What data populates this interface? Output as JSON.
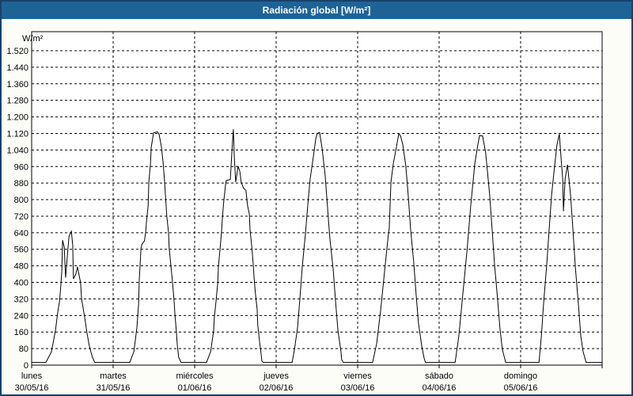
{
  "title": "Radiación global [W/m²]",
  "colors": {
    "titlebar": "#1E6396",
    "panel_border": "#17416B",
    "panel_background": "#FDFDF8",
    "plot_background": "#FFFFFF",
    "grid": "#000000",
    "axis": "#000000",
    "line": "#000000",
    "text": "#000000"
  },
  "chart_data": {
    "type": "line",
    "title": "Radiación global [W/m²]",
    "ylabel": "W/m²",
    "xlabel": "",
    "ylim": [
      0,
      1520
    ],
    "ytick_step": 80,
    "ytick_labels": [
      "0",
      "80",
      "160",
      "240",
      "320",
      "400",
      "480",
      "560",
      "640",
      "720",
      "800",
      "880",
      "960",
      "1.040",
      "1.120",
      "1.200",
      "1.280",
      "1.360",
      "1.440",
      "1.520"
    ],
    "grid": "dashed",
    "legend_position": "none",
    "x_range_hours": [
      0,
      168
    ],
    "day_boundary_hours": [
      24,
      48,
      72,
      96,
      120,
      144
    ],
    "days": [
      {
        "name": "lunes",
        "date": "30/05/16",
        "hour": 0
      },
      {
        "name": "martes",
        "date": "31/05/16",
        "hour": 24
      },
      {
        "name": "miércoles",
        "date": "01/06/16",
        "hour": 48
      },
      {
        "name": "jueves",
        "date": "02/06/16",
        "hour": 72
      },
      {
        "name": "viernes",
        "date": "03/06/16",
        "hour": 96
      },
      {
        "name": "sábado",
        "date": "04/06/16",
        "hour": 120
      },
      {
        "name": "domingo",
        "date": "05/06/16",
        "hour": 144
      }
    ],
    "series": [
      {
        "name": "Radiación global",
        "units": "W/m²",
        "points": [
          [
            0,
            13
          ],
          [
            4.2,
            13
          ],
          [
            5.8,
            64
          ],
          [
            7,
            165
          ],
          [
            7.7,
            256
          ],
          [
            8.2,
            308
          ],
          [
            8.6,
            385
          ],
          [
            8.9,
            462
          ],
          [
            9.1,
            604
          ],
          [
            9.6,
            570
          ],
          [
            10,
            423
          ],
          [
            11,
            622
          ],
          [
            11.7,
            647
          ],
          [
            12.1,
            580
          ],
          [
            12.3,
            417
          ],
          [
            13,
            440
          ],
          [
            13.5,
            475
          ],
          [
            14.4,
            398
          ],
          [
            14.7,
            320
          ],
          [
            15.6,
            231
          ],
          [
            16.3,
            154
          ],
          [
            17,
            90
          ],
          [
            17.9,
            38
          ],
          [
            18.6,
            13
          ],
          [
            28.9,
            13
          ],
          [
            30.1,
            65
          ],
          [
            31,
            181
          ],
          [
            31.5,
            296
          ],
          [
            31.7,
            412
          ],
          [
            32.2,
            565
          ],
          [
            32.5,
            585
          ],
          [
            33.2,
            600
          ],
          [
            33.6,
            645
          ],
          [
            33.8,
            693
          ],
          [
            34.3,
            770
          ],
          [
            34.5,
            885
          ],
          [
            35,
            975
          ],
          [
            35.2,
            1052
          ],
          [
            35.7,
            1103
          ],
          [
            35.9,
            1123
          ],
          [
            37,
            1128
          ],
          [
            37.5,
            1118
          ],
          [
            38.2,
            1058
          ],
          [
            38.7,
            981
          ],
          [
            39.1,
            898
          ],
          [
            39.8,
            719
          ],
          [
            40.3,
            641
          ],
          [
            40.5,
            565
          ],
          [
            41,
            481
          ],
          [
            41.5,
            398
          ],
          [
            41.9,
            321
          ],
          [
            42.2,
            244
          ],
          [
            42.6,
            167
          ],
          [
            42.9,
            96
          ],
          [
            43.3,
            38
          ],
          [
            44,
            13
          ],
          [
            51.5,
            13
          ],
          [
            52.7,
            65
          ],
          [
            53.6,
            167
          ],
          [
            53.8,
            231
          ],
          [
            54.3,
            308
          ],
          [
            54.8,
            398
          ],
          [
            55,
            475
          ],
          [
            55.5,
            565
          ],
          [
            55.9,
            641
          ],
          [
            56.2,
            719
          ],
          [
            56.6,
            796
          ],
          [
            57.1,
            873
          ],
          [
            57.3,
            892
          ],
          [
            58.5,
            898
          ],
          [
            59,
            1040
          ],
          [
            59.4,
            1140
          ],
          [
            59.7,
            1000
          ],
          [
            60.1,
            885
          ],
          [
            60.8,
            962
          ],
          [
            61.3,
            937
          ],
          [
            61.7,
            885
          ],
          [
            62.4,
            855
          ],
          [
            63.1,
            845
          ],
          [
            63.6,
            770
          ],
          [
            64.1,
            731
          ],
          [
            64.3,
            654
          ],
          [
            64.8,
            577
          ],
          [
            65.2,
            500
          ],
          [
            65.5,
            423
          ],
          [
            65.9,
            346
          ],
          [
            66.4,
            269
          ],
          [
            66.6,
            192
          ],
          [
            67.1,
            115
          ],
          [
            67.6,
            51
          ],
          [
            67.8,
            19
          ],
          [
            68.3,
            13
          ],
          [
            76.7,
            13
          ],
          [
            77.4,
            77
          ],
          [
            78.3,
            180
          ],
          [
            79,
            321
          ],
          [
            79.7,
            475
          ],
          [
            80.6,
            629
          ],
          [
            81.3,
            770
          ],
          [
            82,
            898
          ],
          [
            83,
            1013
          ],
          [
            83.7,
            1097
          ],
          [
            84.1,
            1120
          ],
          [
            84.8,
            1125
          ],
          [
            85.5,
            1052
          ],
          [
            86.4,
            924
          ],
          [
            87.1,
            770
          ],
          [
            87.8,
            616
          ],
          [
            88.8,
            462
          ],
          [
            89.5,
            308
          ],
          [
            90.2,
            167
          ],
          [
            91.1,
            64
          ],
          [
            91.3,
            26
          ],
          [
            91.8,
            13
          ],
          [
            100.4,
            13
          ],
          [
            101.6,
            103
          ],
          [
            102.8,
            269
          ],
          [
            103.9,
            449
          ],
          [
            105.1,
            641
          ],
          [
            105.3,
            660
          ],
          [
            105.8,
            885
          ],
          [
            106.5,
            975
          ],
          [
            107.4,
            1052
          ],
          [
            108.1,
            1117
          ],
          [
            108.6,
            1110
          ],
          [
            109.3,
            1065
          ],
          [
            110.2,
            962
          ],
          [
            110.9,
            821
          ],
          [
            111.6,
            654
          ],
          [
            112.5,
            500
          ],
          [
            113.2,
            346
          ],
          [
            113.9,
            205
          ],
          [
            114.9,
            90
          ],
          [
            115.6,
            32
          ],
          [
            116,
            13
          ],
          [
            124.7,
            13
          ],
          [
            125.8,
            141
          ],
          [
            127,
            346
          ],
          [
            128.2,
            552
          ],
          [
            129.3,
            770
          ],
          [
            130.5,
            975
          ],
          [
            131.4,
            1065
          ],
          [
            131.9,
            1110
          ],
          [
            132.8,
            1108
          ],
          [
            133.7,
            1026
          ],
          [
            134.9,
            821
          ],
          [
            135.6,
            654
          ],
          [
            136.3,
            487
          ],
          [
            137.2,
            321
          ],
          [
            137.9,
            180
          ],
          [
            138.6,
            77
          ],
          [
            139.6,
            13
          ],
          [
            149.4,
            13
          ],
          [
            150.1,
            141
          ],
          [
            150.8,
            308
          ],
          [
            151.7,
            487
          ],
          [
            152.4,
            654
          ],
          [
            153.1,
            821
          ],
          [
            154,
            962
          ],
          [
            154.7,
            1065
          ],
          [
            155.4,
            1117
          ],
          [
            155.9,
            1000
          ],
          [
            156.4,
            898
          ],
          [
            156.6,
            744
          ],
          [
            157.1,
            900
          ],
          [
            157.8,
            969
          ],
          [
            158.2,
            905
          ],
          [
            158.7,
            821
          ],
          [
            159.4,
            654
          ],
          [
            160.1,
            475
          ],
          [
            161,
            295
          ],
          [
            161.7,
            141
          ],
          [
            162.4,
            64
          ],
          [
            163.3,
            13
          ],
          [
            168,
            13
          ]
        ]
      }
    ]
  }
}
